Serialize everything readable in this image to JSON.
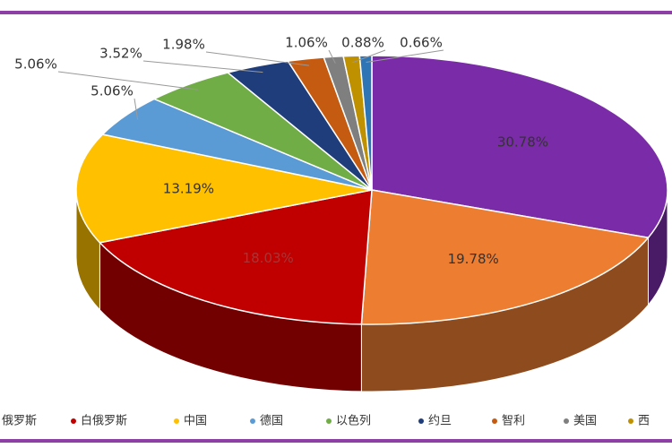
{
  "chart_data": {
    "type": "pie",
    "categories": [
      null,
      "俄罗斯",
      "白俄罗斯",
      "中国",
      "德国",
      "以色列",
      "约旦",
      "智利",
      "美国",
      "西",
      null
    ],
    "values": [
      30.78,
      19.78,
      18.03,
      13.19,
      5.06,
      5.06,
      3.52,
      1.98,
      1.06,
      0.88,
      0.66
    ],
    "value_labels": [
      "30.78%",
      "19.78%",
      "18.03%",
      "13.19%",
      "5.06%",
      "5.06%",
      "3.52%",
      "1.98%",
      "1.06%",
      "0.88%",
      "0.66%"
    ],
    "colors": [
      "#7a2ca8",
      "#ed7d31",
      "#c00000",
      "#ffc000",
      "#5b9bd5",
      "#70ad47",
      "#1f3d7a",
      "#c55a11",
      "#7f7f7f",
      "#bf9000",
      "#2e75b6"
    ],
    "legend": "bottom"
  }
}
